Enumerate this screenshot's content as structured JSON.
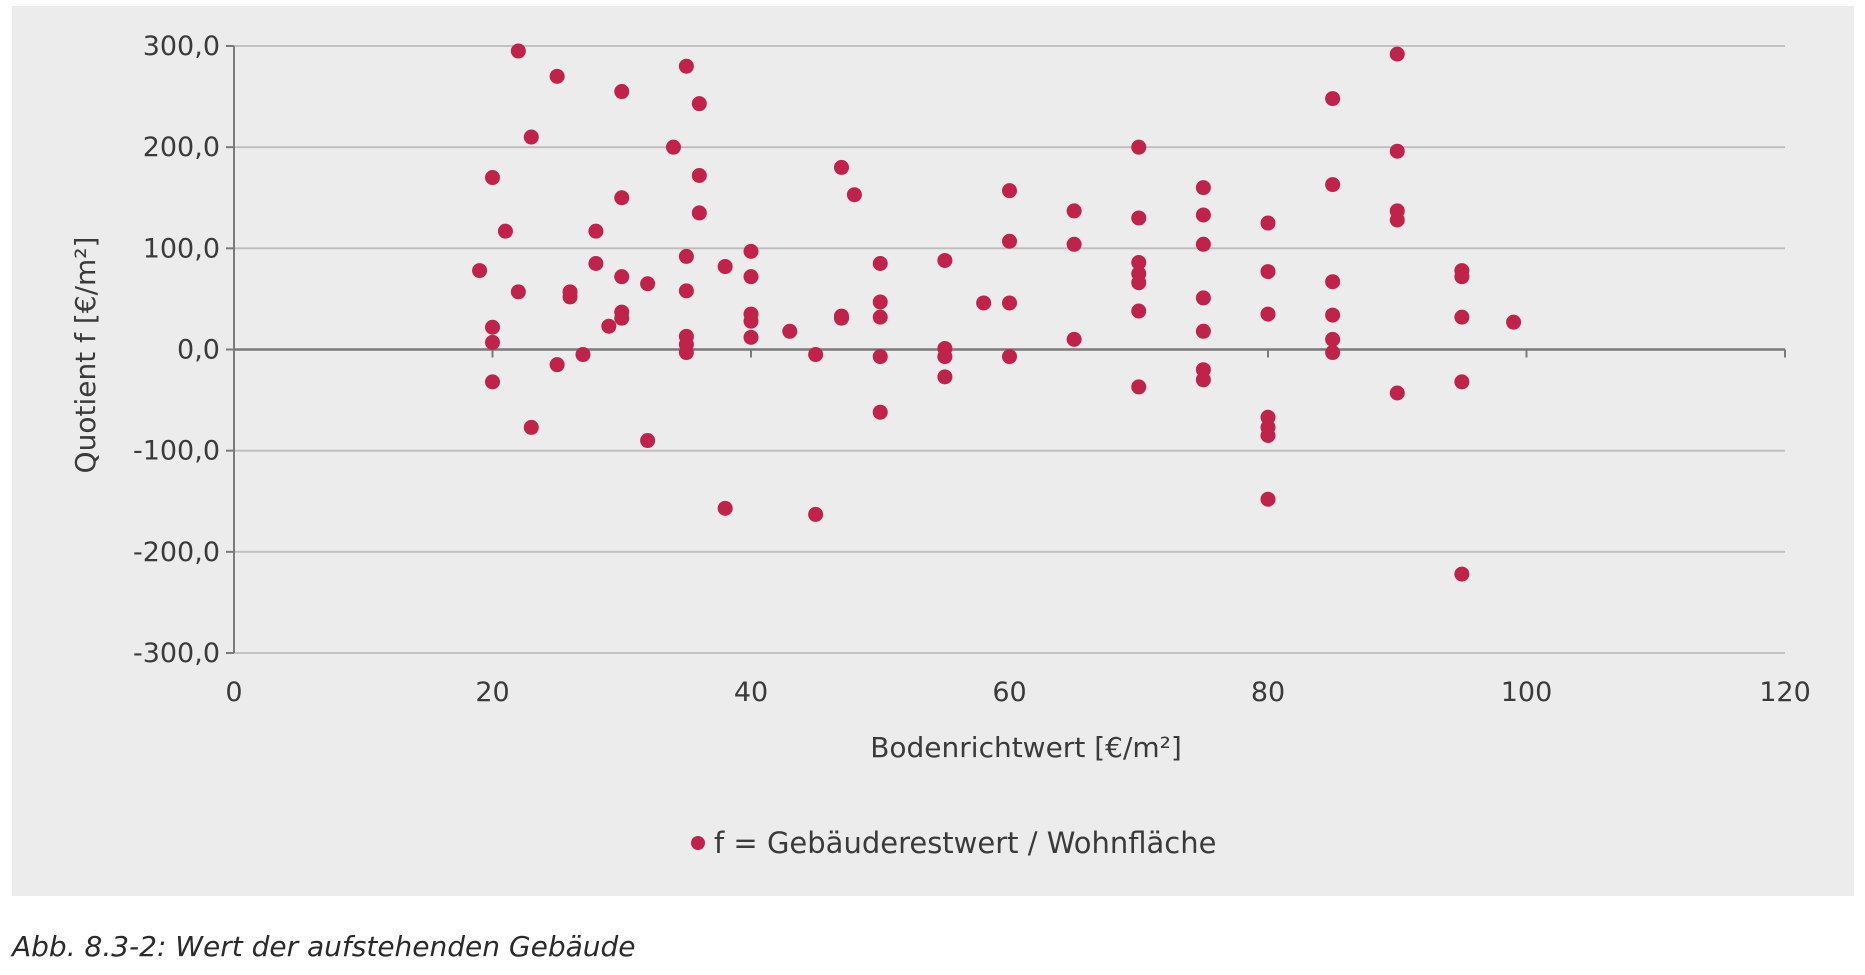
{
  "caption": "Abb. 8.3-2: Wert der aufstehenden Gebäude",
  "colors": {
    "background": "#ececec",
    "gridline": "#bdbdbd",
    "axis": "#7a7a7a",
    "series": "#c0224a"
  },
  "chart_data": {
    "type": "scatter",
    "title": "",
    "xlabel": "Bodenrichtwert [€/m²]",
    "ylabel": "Quotient f [€/m²]",
    "xlim": [
      0,
      120
    ],
    "ylim": [
      -300,
      300
    ],
    "x_ticks": [
      "0",
      "20",
      "40",
      "60",
      "80",
      "100",
      "120"
    ],
    "x_tick_values": [
      0,
      20,
      40,
      60,
      80,
      100,
      120
    ],
    "y_ticks": [
      "300,0",
      "200,0",
      "100,0",
      "0,0",
      "-100,0",
      "-200,0",
      "-300,0"
    ],
    "y_tick_values": [
      300,
      200,
      100,
      0,
      -100,
      -200,
      -300
    ],
    "grid": true,
    "legend_position": "bottom-center",
    "series": [
      {
        "name": "f = Gebäuderestwert / Wohnfläche",
        "color": "#c0224a",
        "points": [
          [
            19,
            78
          ],
          [
            20,
            170
          ],
          [
            20,
            22
          ],
          [
            20,
            7
          ],
          [
            20,
            -32
          ],
          [
            21,
            117
          ],
          [
            22,
            295
          ],
          [
            22,
            57
          ],
          [
            23,
            210
          ],
          [
            23,
            -77
          ],
          [
            25,
            270
          ],
          [
            25,
            -15
          ],
          [
            26,
            57
          ],
          [
            26,
            52
          ],
          [
            27,
            -5
          ],
          [
            28,
            117
          ],
          [
            28,
            85
          ],
          [
            29,
            23
          ],
          [
            30,
            255
          ],
          [
            30,
            150
          ],
          [
            30,
            72
          ],
          [
            30,
            37
          ],
          [
            30,
            31
          ],
          [
            32,
            65
          ],
          [
            32,
            -90
          ],
          [
            34,
            200
          ],
          [
            35,
            280
          ],
          [
            35,
            92
          ],
          [
            35,
            58
          ],
          [
            35,
            13
          ],
          [
            35,
            5
          ],
          [
            35,
            -3
          ],
          [
            36,
            243
          ],
          [
            36,
            172
          ],
          [
            36,
            135
          ],
          [
            38,
            82
          ],
          [
            38,
            -157
          ],
          [
            40,
            97
          ],
          [
            40,
            72
          ],
          [
            40,
            35
          ],
          [
            40,
            28
          ],
          [
            40,
            12
          ],
          [
            43,
            18
          ],
          [
            45,
            -5
          ],
          [
            45,
            -163
          ],
          [
            47,
            180
          ],
          [
            47,
            33
          ],
          [
            47,
            31
          ],
          [
            48,
            153
          ],
          [
            50,
            85
          ],
          [
            50,
            47
          ],
          [
            50,
            32
          ],
          [
            50,
            -7
          ],
          [
            50,
            -62
          ],
          [
            55,
            88
          ],
          [
            55,
            1
          ],
          [
            55,
            -7
          ],
          [
            55,
            -27
          ],
          [
            58,
            46
          ],
          [
            60,
            157
          ],
          [
            60,
            107
          ],
          [
            60,
            46
          ],
          [
            60,
            -7
          ],
          [
            65,
            137
          ],
          [
            65,
            104
          ],
          [
            65,
            10
          ],
          [
            70,
            200
          ],
          [
            70,
            130
          ],
          [
            70,
            86
          ],
          [
            70,
            75
          ],
          [
            70,
            66
          ],
          [
            70,
            38
          ],
          [
            70,
            -37
          ],
          [
            75,
            160
          ],
          [
            75,
            133
          ],
          [
            75,
            104
          ],
          [
            75,
            51
          ],
          [
            75,
            18
          ],
          [
            75,
            -20
          ],
          [
            75,
            -30
          ],
          [
            80,
            125
          ],
          [
            80,
            77
          ],
          [
            80,
            35
          ],
          [
            80,
            -67
          ],
          [
            80,
            -77
          ],
          [
            80,
            -85
          ],
          [
            80,
            -148
          ],
          [
            85,
            248
          ],
          [
            85,
            163
          ],
          [
            85,
            67
          ],
          [
            85,
            34
          ],
          [
            85,
            10
          ],
          [
            85,
            -3
          ],
          [
            90,
            292
          ],
          [
            90,
            196
          ],
          [
            90,
            137
          ],
          [
            90,
            128
          ],
          [
            90,
            -43
          ],
          [
            95,
            78
          ],
          [
            95,
            72
          ],
          [
            95,
            32
          ],
          [
            95,
            -32
          ],
          [
            95,
            -222
          ],
          [
            99,
            27
          ]
        ]
      }
    ]
  }
}
